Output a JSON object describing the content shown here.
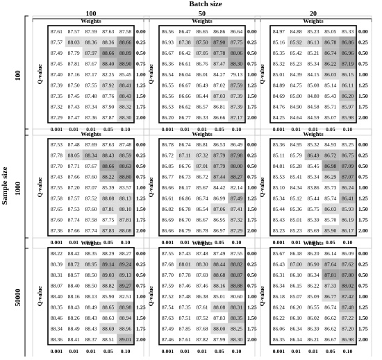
{
  "chart_data": {
    "type": "heatmap",
    "row_axis_label": "Sample size",
    "col_axis_label": "Batch size",
    "panel_x_label": "Weights",
    "panel_y_label": "Q-value",
    "row_values": [
      "100",
      "1000",
      "50000"
    ],
    "col_values": [
      "100",
      "50",
      "20"
    ],
    "weights": [
      "0.001",
      "0.01",
      "0.01",
      "0.05",
      "0.10"
    ],
    "q_values": [
      "0.00",
      "0.25",
      "0.50",
      "0.75",
      "1.00",
      "1.25",
      "1.50",
      "1.75",
      "2.00"
    ],
    "panels": [
      [
        [
          [
            87.61,
            87.57,
            87.59,
            87.63,
            87.58
          ],
          [
            87.57,
            88.03,
            88.36,
            88.36,
            88.66
          ],
          [
            87.49,
            87.79,
            87.97,
            88.66,
            88.89
          ],
          [
            87.45,
            87.81,
            87.67,
            88.4,
            88.9
          ],
          [
            87.4,
            87.16,
            87.17,
            82.25,
            85.45
          ],
          [
            87.39,
            87.5,
            87.55,
            87.92,
            88.41
          ],
          [
            87.35,
            87.45,
            87.48,
            87.76,
            88.43
          ],
          [
            87.32,
            87.43,
            87.34,
            87.9,
            88.32
          ],
          [
            87.29,
            87.47,
            87.36,
            87.87,
            88.3
          ]
        ],
        [
          [
            86.56,
            86.47,
            86.65,
            86.86,
            86.64
          ],
          [
            86.93,
            87.38,
            87.5,
            87.9,
            87.75
          ],
          [
            86.67,
            86.42,
            87.05,
            87.78,
            88.06
          ],
          [
            86.36,
            86.61,
            86.76,
            87.47,
            88.3
          ],
          [
            86.54,
            86.04,
            86.01,
            84.27,
            79.13
          ],
          [
            86.55,
            86.67,
            86.49,
            87.02,
            87.59
          ],
          [
            86.56,
            86.66,
            86.44,
            87.03,
            87.39
          ],
          [
            86.53,
            86.62,
            86.57,
            86.81,
            87.39
          ],
          [
            86.2,
            86.77,
            86.33,
            86.66,
            87.17
          ]
        ],
        [
          [
            84.97,
            84.88,
            85.23,
            85.05,
            85.33
          ],
          [
            85.16,
            85.92,
            86.13,
            86.78,
            86.86
          ],
          [
            85.35,
            85.42,
            85.21,
            86.74,
            86.96
          ],
          [
            85.32,
            85.23,
            85.34,
            86.22,
            87.19
          ],
          [
            85.01,
            84.39,
            84.15,
            86.03,
            86.15
          ],
          [
            84.89,
            84.75,
            85.08,
            85.14,
            86.11
          ],
          [
            84.69,
            85.0,
            84.8,
            85.43,
            86.2
          ],
          [
            84.76,
            84.9,
            84.58,
            85.71,
            85.97
          ],
          [
            84.25,
            84.64,
            84.59,
            85.07,
            85.98
          ]
        ]
      ],
      [
        [
          [
            87.53,
            87.48,
            87.69,
            87.63,
            87.48
          ],
          [
            87.78,
            88.05,
            88.34,
            88.43,
            88.59
          ],
          [
            87.7,
            87.71,
            87.67,
            88.66,
            88.63
          ],
          [
            87.43,
            87.66,
            87.6,
            88.22,
            88.8
          ],
          [
            87.55,
            87.2,
            87.07,
            85.39,
            83.57
          ],
          [
            87.58,
            87.57,
            87.52,
            88.08,
            88.13
          ],
          [
            87.65,
            87.53,
            87.6,
            87.81,
            88.1
          ],
          [
            87.6,
            87.74,
            87.58,
            87.75,
            87.81
          ],
          [
            87.36,
            87.66,
            87.74,
            87.83,
            88.08
          ]
        ],
        [
          [
            86.78,
            86.74,
            86.81,
            86.53,
            86.49
          ],
          [
            86.72,
            87.11,
            87.32,
            87.79,
            87.98
          ],
          [
            86.85,
            86.76,
            87.01,
            87.79,
            88.0
          ],
          [
            86.77,
            86.73,
            86.72,
            87.44,
            88.27
          ],
          [
            86.66,
            86.17,
            85.67,
            84.42,
            82.14
          ],
          [
            86.61,
            86.86,
            86.74,
            86.99,
            87.49
          ],
          [
            86.82,
            86.78,
            86.54,
            87.06,
            87.41
          ],
          [
            86.69,
            86.7,
            86.67,
            86.95,
            87.32
          ],
          [
            86.66,
            86.79,
            86.78,
            86.97,
            87.29
          ]
        ],
        [
          [
            85.36,
            84.95,
            85.32,
            84.93,
            85.25
          ],
          [
            85.11,
            85.79,
            86.49,
            86.72,
            86.75
          ],
          [
            84.81,
            85.28,
            85.45,
            86.98,
            87.09
          ],
          [
            85.53,
            85.41,
            85.34,
            86.29,
            87.07
          ],
          [
            85.1,
            84.34,
            83.86,
            85.73,
            86.24
          ],
          [
            85.34,
            85.12,
            85.44,
            85.74,
            86.41
          ],
          [
            85.44,
            85.36,
            85.75,
            86.03,
            85.93
          ],
          [
            85.43,
            85.01,
            85.39,
            85.7,
            86.19
          ],
          [
            85.23,
            85.23,
            85.69,
            85.9,
            86.17
          ]
        ]
      ],
      [
        [
          [
            88.22,
            88.42,
            88.35,
            88.29,
            88.27
          ],
          [
            88.39,
            88.72,
            88.95,
            89.14,
            89.24
          ],
          [
            88.31,
            88.57,
            88.5,
            89.03,
            89.13
          ],
          [
            88.07,
            88.4,
            88.5,
            88.82,
            89.27
          ],
          [
            88.4,
            88.16,
            88.13,
            85.9,
            82.51
          ],
          [
            88.35,
            88.43,
            88.49,
            88.65,
            88.98
          ],
          [
            88.46,
            88.26,
            88.43,
            88.63,
            88.94
          ],
          [
            88.34,
            88.49,
            88.43,
            88.69,
            88.96
          ],
          [
            88.36,
            88.41,
            88.37,
            88.51,
            89.01
          ]
        ],
        [
          [
            87.55,
            87.43,
            87.48,
            87.49,
            87.55
          ],
          [
            87.68,
            88.01,
            88.3,
            88.44,
            88.82
          ],
          [
            87.7,
            87.78,
            87.69,
            88.68,
            88.87
          ],
          [
            87.59,
            87.46,
            87.46,
            88.16,
            88.88
          ],
          [
            87.52,
            87.48,
            86.38,
            85.01,
            80.6
          ],
          [
            87.54,
            87.35,
            87.61,
            88.08,
            88.31
          ],
          [
            87.63,
            87.51,
            87.52,
            87.83,
            88.35
          ],
          [
            87.49,
            87.85,
            87.68,
            88.0,
            88.25
          ],
          [
            87.46,
            87.61,
            87.82,
            87.99,
            88.3
          ]
        ],
        [
          [
            85.67,
            86.18,
            86.2,
            86.14,
            86.09
          ],
          [
            86.43,
            87.0,
            86.9,
            87.64,
            87.62
          ],
          [
            86.31,
            86.1,
            86.34,
            87.81,
            87.8
          ],
          [
            86.34,
            86.15,
            86.22,
            87.33,
            88.02
          ],
          [
            86.18,
            85.07,
            85.09,
            86.77,
            87.42
          ],
          [
            86.24,
            86.2,
            86.55,
            86.74,
            87.48
          ],
          [
            86.22,
            86.1,
            86.02,
            86.62,
            87.22
          ],
          [
            86.06,
            86.34,
            86.39,
            86.62,
            87.2
          ],
          [
            86.35,
            86.14,
            86.21,
            86.67,
            86.98
          ]
        ]
      ]
    ],
    "highlight_colors": [
      "#ffffff",
      "#dddddd",
      "#c2c2c2",
      "#a9a9a9"
    ]
  }
}
